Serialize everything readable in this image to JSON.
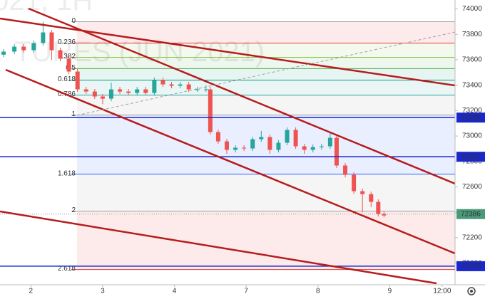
{
  "chart_data": {
    "type": "candlestick",
    "watermark": [
      "021, 1H",
      "TURES (JUN 2021)"
    ],
    "x": [
      -0.38,
      -0.23,
      -0.1,
      0.04,
      0.17,
      0.29,
      0.41,
      0.53,
      0.65,
      0.77,
      0.89,
      1.0,
      1.12,
      1.24,
      1.36,
      1.48,
      1.6,
      1.72,
      1.84,
      1.96,
      2.08,
      2.2,
      2.32,
      2.44,
      2.5,
      2.61,
      2.73,
      2.85,
      2.97,
      3.09,
      3.21,
      3.33,
      3.45,
      3.57,
      3.69,
      3.81,
      3.93,
      4.05,
      4.17,
      4.26,
      4.38,
      4.5,
      4.62,
      4.74,
      4.84,
      4.92
    ],
    "open": [
      73640,
      73664,
      73703,
      73675,
      73731,
      73815,
      73675,
      73608,
      73507,
      73367,
      73350,
      73311,
      73294,
      73367,
      73350,
      73339,
      73367,
      73339,
      73440,
      73406,
      73395,
      73406,
      73367,
      73367,
      73367,
      73031,
      72958,
      72891,
      72908,
      72902,
      72975,
      72992,
      72891,
      72947,
      73048,
      72919,
      72891,
      72913,
      72919,
      72986,
      72768,
      72695,
      72566,
      72543,
      72482,
      72387
    ],
    "high": [
      73684,
      73723,
      73723,
      73751,
      73899,
      73835,
      73695,
      73628,
      73527,
      73387,
      73370,
      73331,
      73420,
      73387,
      73370,
      73387,
      73387,
      73460,
      73460,
      73426,
      73426,
      73426,
      73387,
      73400,
      73387,
      73051,
      72978,
      72928,
      72928,
      72995,
      73040,
      73012,
      72967,
      73068,
      73068,
      72939,
      72933,
      72939,
      73030,
      73006,
      72788,
      72715,
      72586,
      72563,
      72502,
      72407
    ],
    "low": [
      73620,
      73644,
      73655,
      73655,
      73711,
      73600,
      73588,
      73487,
      73347,
      73330,
      73291,
      73250,
      73274,
      73330,
      73319,
      73319,
      73319,
      73319,
      73386,
      73375,
      73375,
      73347,
      73347,
      73347,
      73011,
      72938,
      72860,
      72871,
      72882,
      72882,
      72955,
      72860,
      72871,
      72927,
      72899,
      72860,
      72871,
      72893,
      72899,
      72748,
      72675,
      72546,
      72400,
      72440,
      72367,
      72360
    ],
    "close": [
      73664,
      73703,
      73675,
      73731,
      73815,
      73675,
      73608,
      73507,
      73367,
      73350,
      73311,
      73294,
      73367,
      73350,
      73339,
      73367,
      73339,
      73440,
      73406,
      73395,
      73406,
      73367,
      73367,
      73367,
      73031,
      72958,
      72891,
      72908,
      72902,
      72975,
      72992,
      72891,
      72947,
      73048,
      72919,
      72891,
      72913,
      72919,
      72986,
      72768,
      72695,
      72566,
      72543,
      72482,
      72387,
      72375
    ],
    "up_color": "#26a69a",
    "down_color": "#ef5350",
    "xlim": [
      -0.43,
      5.91
    ],
    "ylim": [
      71830,
      74070
    ],
    "xticks": [
      {
        "value": 0,
        "label": "2"
      },
      {
        "value": 1,
        "label": "3"
      },
      {
        "value": 2,
        "label": "4"
      },
      {
        "value": 3,
        "label": "7"
      },
      {
        "value": 4,
        "label": "8"
      },
      {
        "value": 5,
        "label": "9"
      },
      {
        "value": 5.73,
        "label": "12:00"
      }
    ],
    "yticks": [
      74000,
      73800,
      73600,
      73400,
      73200,
      73000,
      72800,
      72600,
      72400,
      72200,
      72000
    ],
    "fib": {
      "labels": [
        "0",
        "0.236",
        "0.382",
        "0.5",
        "0.618",
        "0.786",
        "1",
        "1.618",
        "2",
        "2.618"
      ],
      "values": [
        73899,
        73731,
        73619,
        73530,
        73440,
        73322,
        73165,
        72700,
        72409,
        71950
      ],
      "colors": [
        "#9e9e9e",
        "#e53935",
        "#8bc34a",
        "#4caf50",
        "#089981",
        "#26a69a",
        "#9e9e9e",
        "#2962ff",
        "#9e9e9e",
        "#e53935"
      ]
    },
    "price_lines": [
      73145,
      72837,
      71976
    ],
    "price_line_color": "#1a27c9",
    "last_price": 72386,
    "last_price_color": "#4a9a7a"
  }
}
